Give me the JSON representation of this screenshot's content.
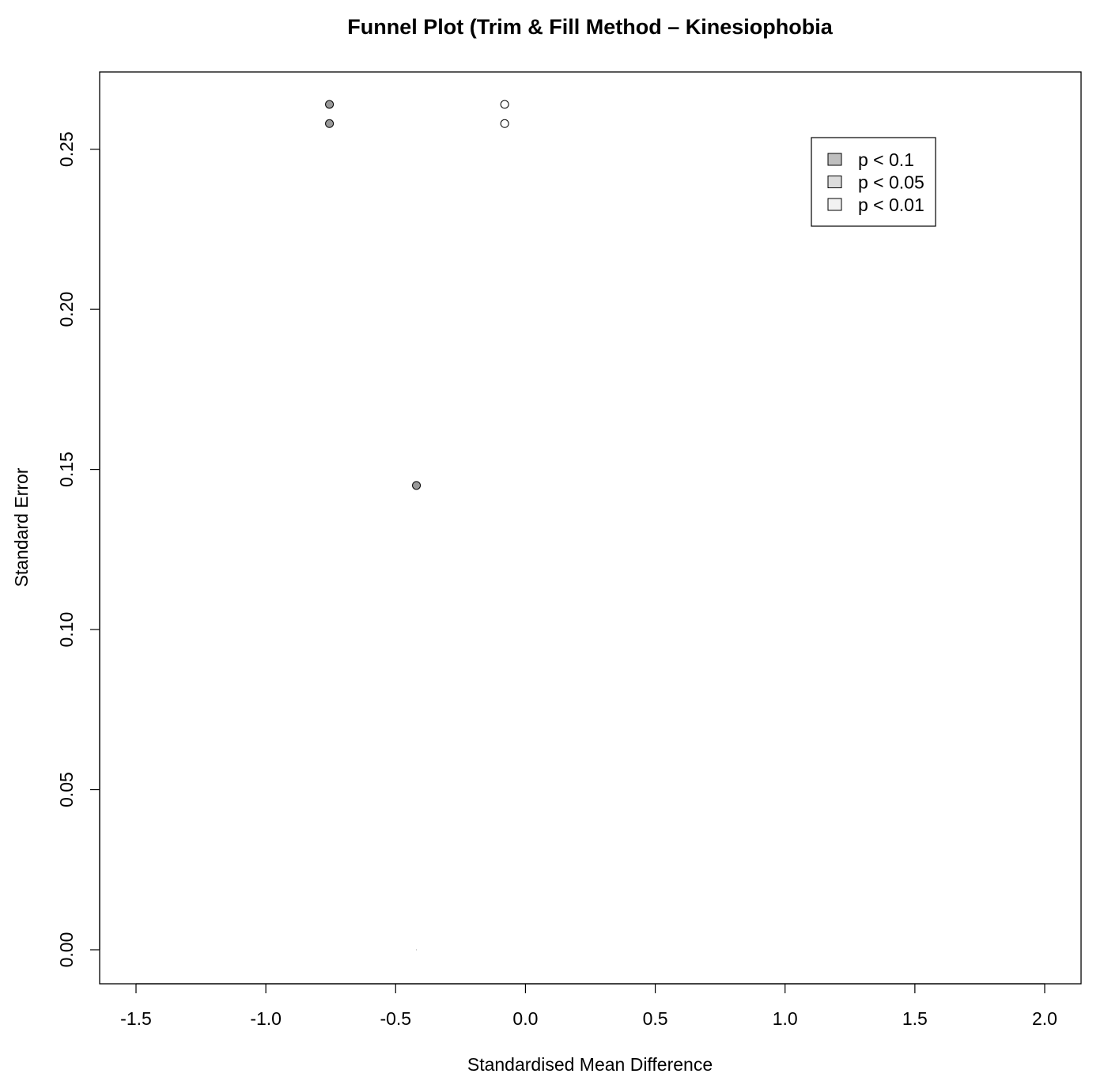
{
  "chart_data": {
    "type": "scatter",
    "subtype": "contour-enhanced funnel plot",
    "title": "Funnel Plot (Trim & Fill Method – Kinesiophobia",
    "xlabel": "Standardised Mean Difference",
    "ylabel": "Standard Error",
    "xlim": [
      -1.5,
      2.0
    ],
    "ylim": [
      0.264,
      0.0
    ],
    "y_reversed": true,
    "x_ticks": [
      "-1.5",
      "-1.0",
      "-0.5",
      "0.0",
      "0.5",
      "1.0",
      "1.5",
      "2.0"
    ],
    "x_tick_values": [
      -1.5,
      -1.0,
      -0.5,
      0.0,
      0.5,
      1.0,
      1.5,
      2.0
    ],
    "y_ticks": [
      "0.00",
      "0.05",
      "0.10",
      "0.15",
      "0.20",
      "0.25"
    ],
    "y_tick_values": [
      0.0,
      0.05,
      0.1,
      0.15,
      0.2,
      0.25
    ],
    "contour_center": 0.0,
    "contours": [
      {
        "label": "p < 0.1",
        "z": 1.645,
        "color": "#bfbfbf"
      },
      {
        "label": "p < 0.05",
        "z": 1.96,
        "color": "#dcdcdc"
      },
      {
        "label": "p < 0.01",
        "z": 2.576,
        "color": "#f2f2f2"
      }
    ],
    "pooled_estimate": -0.42,
    "observed_points": [
      {
        "x": -0.42,
        "y": 0.145
      },
      {
        "x": -0.755,
        "y": 0.258
      },
      {
        "x": -0.755,
        "y": 0.264
      }
    ],
    "filled_points": [
      {
        "x": -0.08,
        "y": 0.258
      },
      {
        "x": -0.08,
        "y": 0.264
      }
    ],
    "legend": {
      "position": "top-right",
      "items": [
        {
          "label": "p < 0.1",
          "color": "#bfbfbf"
        },
        {
          "label": "p < 0.05",
          "color": "#dcdcdc"
        },
        {
          "label": "p < 0.01",
          "color": "#f2f2f2"
        }
      ]
    }
  }
}
